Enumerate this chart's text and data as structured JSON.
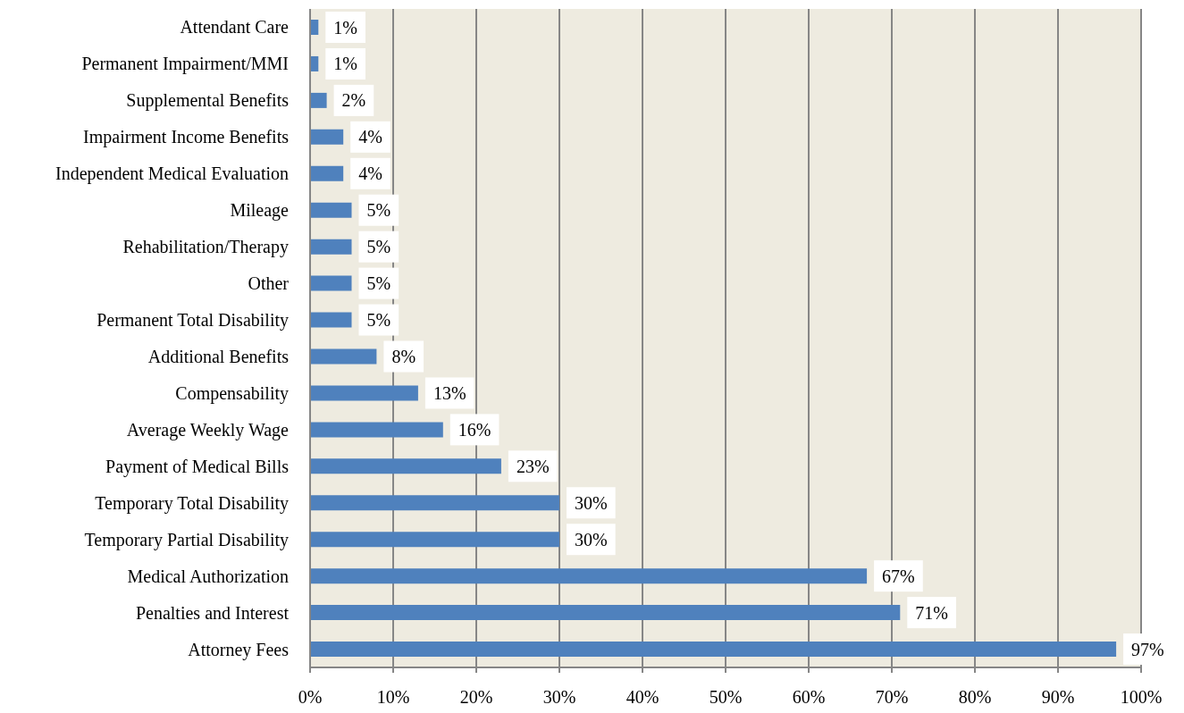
{
  "chart_data": {
    "type": "bar",
    "orientation": "horizontal",
    "categories": [
      "Attendant Care",
      "Permanent Impairment/MMI",
      "Supplemental Benefits",
      "Impairment Income Benefits",
      "Independent Medical Evaluation",
      "Mileage",
      "Rehabilitation/Therapy",
      "Other",
      "Permanent Total Disability",
      "Additional Benefits",
      "Compensability",
      "Average Weekly Wage",
      "Payment of Medical Bills",
      "Temporary Total Disability",
      "Temporary Partial Disability",
      "Medical Authorization",
      "Penalties and Interest",
      "Attorney Fees"
    ],
    "values": [
      1,
      1,
      2,
      4,
      4,
      5,
      5,
      5,
      5,
      8,
      13,
      16,
      23,
      30,
      30,
      67,
      71,
      97
    ],
    "value_labels": [
      "1%",
      "1%",
      "2%",
      "4%",
      "4%",
      "5%",
      "5%",
      "5%",
      "5%",
      "8%",
      "13%",
      "16%",
      "23%",
      "30%",
      "30%",
      "67%",
      "71%",
      "97%"
    ],
    "color": "#4f81bd",
    "xlim": [
      0,
      100
    ],
    "xticks": [
      {
        "value": 0,
        "label": "0%"
      },
      {
        "value": 10,
        "label": "10%"
      },
      {
        "value": 20,
        "label": "20%"
      },
      {
        "value": 30,
        "label": "30%"
      },
      {
        "value": 40,
        "label": "40%"
      },
      {
        "value": 50,
        "label": "50%"
      },
      {
        "value": 60,
        "label": "60%"
      },
      {
        "value": 70,
        "label": "70%"
      },
      {
        "value": 80,
        "label": "80%"
      },
      {
        "value": 90,
        "label": "90%"
      },
      {
        "value": 100,
        "label": "100%"
      }
    ],
    "grid": "x"
  }
}
